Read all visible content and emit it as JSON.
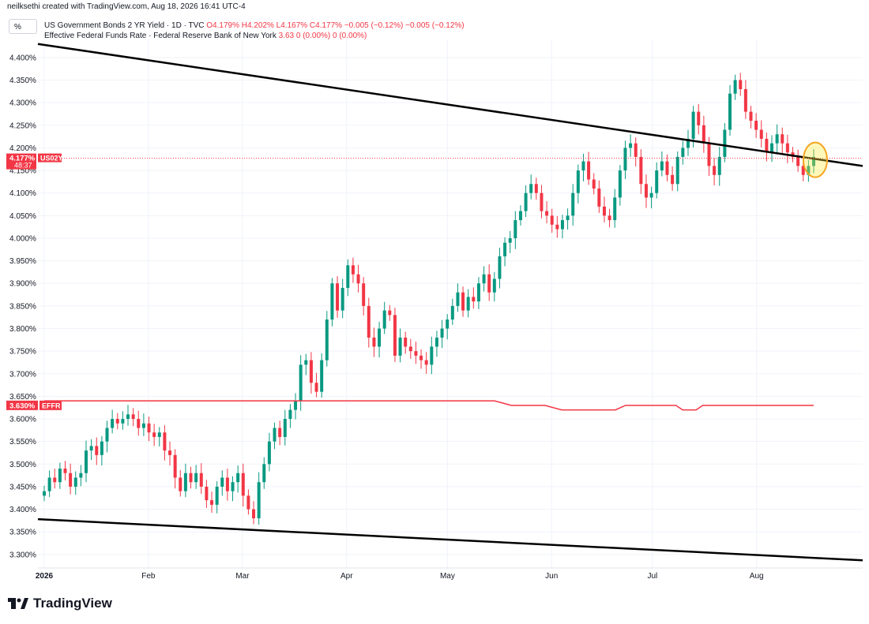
{
  "credit": "neilksethi created with TradingView.com, Aug 18, 2026 16:41 UTC-4",
  "pct_button": "%",
  "legend": {
    "series1_name": "US Government Bonds 2 YR Yield · 1D · TVC",
    "series1_ohlc": "O4.179% H4.202% L4.167% C4.177% −0.005 (−0.12%) −0.005 (−0.12%)",
    "series2_name": "Effective Federal Funds Rate · Federal Reserve Bank of New York",
    "series2_vals": "3.63 0 (0.00%) 0 (0.00%)"
  },
  "brand": "TradingView",
  "colors": {
    "up": "#089981",
    "down": "#f23645",
    "effr": "#f23645",
    "trend": "#000000",
    "highlight": "#f5a623"
  },
  "chart_data": {
    "type": "candlestick",
    "title": "US Government Bonds 2 YR Yield",
    "ylim": [
      3.27,
      4.44
    ],
    "y_ticks": [
      "4.400%",
      "4.350%",
      "4.300%",
      "4.250%",
      "4.200%",
      "4.150%",
      "4.100%",
      "4.050%",
      "4.000%",
      "3.950%",
      "3.900%",
      "3.850%",
      "3.800%",
      "3.750%",
      "3.700%",
      "3.650%",
      "3.600%",
      "3.550%",
      "3.500%",
      "3.450%",
      "3.400%",
      "3.350%",
      "3.300%"
    ],
    "x_ticks": [
      "2026",
      "Feb",
      "Mar",
      "Apr",
      "May",
      "Jun",
      "Jul",
      "Aug"
    ],
    "price_label": {
      "value": "4.177%",
      "timer": "48:37",
      "tag": "US02Y"
    },
    "effr_label": {
      "value": "3.630%",
      "tag": "EFFR"
    },
    "candles_close": [
      3.44,
      3.47,
      3.46,
      3.49,
      3.48,
      3.45,
      3.47,
      3.48,
      3.53,
      3.54,
      3.52,
      3.55,
      3.58,
      3.6,
      3.59,
      3.6,
      3.61,
      3.6,
      3.58,
      3.59,
      3.57,
      3.56,
      3.57,
      3.53,
      3.52,
      3.47,
      3.44,
      3.48,
      3.46,
      3.48,
      3.45,
      3.42,
      3.41,
      3.45,
      3.47,
      3.44,
      3.46,
      3.48,
      3.43,
      3.4,
      3.38,
      3.46,
      3.5,
      3.55,
      3.58,
      3.56,
      3.6,
      3.62,
      3.64,
      3.72,
      3.73,
      3.68,
      3.66,
      3.73,
      3.82,
      3.9,
      3.84,
      3.89,
      3.94,
      3.92,
      3.9,
      3.85,
      3.78,
      3.76,
      3.8,
      3.84,
      3.83,
      3.74,
      3.78,
      3.76,
      3.75,
      3.74,
      3.73,
      3.72,
      3.76,
      3.78,
      3.8,
      3.82,
      3.85,
      3.88,
      3.84,
      3.87,
      3.86,
      3.9,
      3.92,
      3.88,
      3.91,
      3.96,
      3.99,
      4.0,
      4.04,
      4.06,
      4.1,
      4.12,
      4.1,
      4.06,
      4.05,
      4.03,
      4.02,
      4.04,
      4.05,
      4.1,
      4.15,
      4.17,
      4.13,
      4.11,
      4.07,
      4.05,
      4.04,
      4.09,
      4.15,
      4.2,
      4.21,
      4.18,
      4.12,
      4.09,
      4.1,
      4.15,
      4.17,
      4.14,
      4.12,
      4.18,
      4.2,
      4.22,
      4.28,
      4.25,
      4.21,
      4.16,
      4.14,
      4.18,
      4.24,
      4.32,
      4.35,
      4.33,
      4.28,
      4.26,
      4.24,
      4.22,
      4.19,
      4.21,
      4.23,
      4.21,
      4.19,
      4.18,
      4.16,
      4.14,
      4.16,
      4.18
    ],
    "effr": [
      {
        "x": "2026-01-01",
        "y": 3.64
      },
      {
        "x": "2026-05-15",
        "y": 3.64
      },
      {
        "x": "2026-05-20",
        "y": 3.63
      },
      {
        "x": "2026-05-30",
        "y": 3.63
      },
      {
        "x": "2026-06-04",
        "y": 3.62
      },
      {
        "x": "2026-06-20",
        "y": 3.62
      },
      {
        "x": "2026-06-23",
        "y": 3.63
      },
      {
        "x": "2026-07-08",
        "y": 3.63
      },
      {
        "x": "2026-07-10",
        "y": 3.62
      },
      {
        "x": "2026-07-14",
        "y": 3.62
      },
      {
        "x": "2026-07-16",
        "y": 3.63
      },
      {
        "x": "2026-08-18",
        "y": 3.63
      }
    ]
  }
}
